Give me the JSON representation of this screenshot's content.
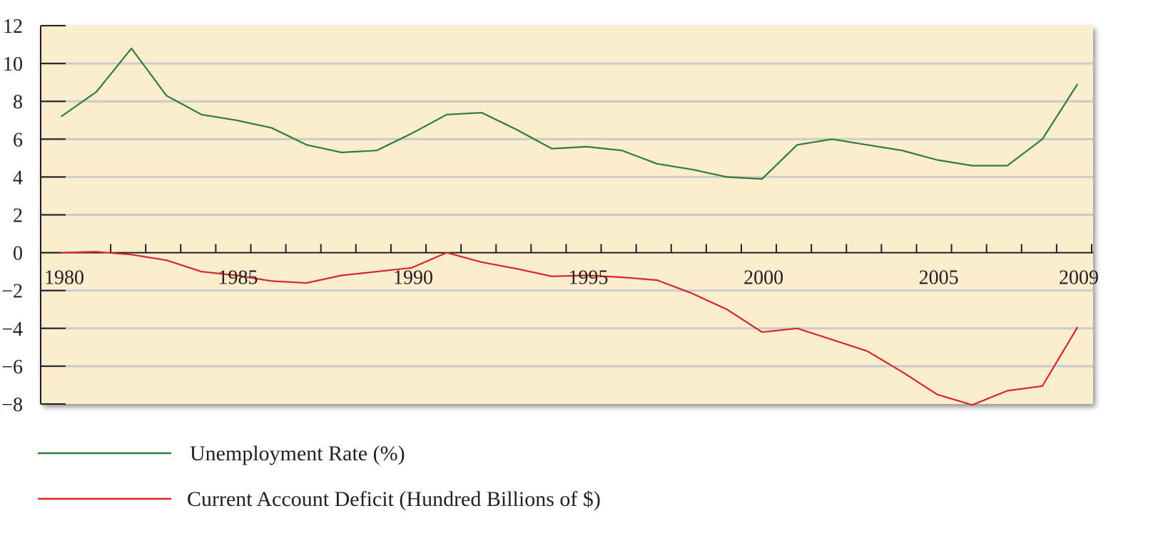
{
  "chart_data": {
    "type": "line",
    "x": [
      1980,
      1981,
      1982,
      1983,
      1984,
      1985,
      1986,
      1987,
      1988,
      1989,
      1990,
      1991,
      1992,
      1993,
      1994,
      1995,
      1996,
      1997,
      1998,
      1999,
      2000,
      2001,
      2002,
      2003,
      2004,
      2005,
      2006,
      2007,
      2008,
      2009
    ],
    "series": [
      {
        "name": "Unemployment Rate (%)",
        "color": "#2e7d32",
        "values": [
          7.2,
          8.5,
          10.8,
          8.3,
          7.3,
          7.0,
          6.6,
          5.7,
          5.3,
          5.4,
          6.3,
          7.3,
          7.4,
          6.5,
          5.5,
          5.6,
          5.4,
          4.7,
          4.4,
          4.0,
          3.9,
          5.7,
          6.0,
          5.7,
          5.4,
          4.9,
          4.6,
          4.6,
          6.0,
          8.9
        ]
      },
      {
        "name": "Current Account Deficit (Hundred Billions of $)",
        "color": "#d7262b",
        "values": [
          0.0,
          0.05,
          -0.1,
          -0.4,
          -1.0,
          -1.2,
          -1.5,
          -1.6,
          -1.2,
          -1.0,
          -0.8,
          0.0,
          -0.5,
          -0.85,
          -1.25,
          -1.2,
          -1.3,
          -1.45,
          -2.15,
          -3.0,
          -4.2,
          -4.0,
          -4.6,
          -5.2,
          -6.3,
          -7.5,
          -8.05,
          -7.3,
          -7.05,
          -3.95
        ]
      }
    ],
    "x_tick_labels": [
      "1980",
      "1985",
      "1990",
      "1995",
      "2000",
      "2005",
      "2009"
    ],
    "y_tick_labels": [
      "12",
      "10",
      "8",
      "6",
      "4",
      "2",
      "0",
      "−2",
      "−4",
      "−6",
      "−8"
    ],
    "ylim": [
      -8,
      12
    ],
    "xlim": [
      1980,
      2009
    ],
    "grid": true,
    "colors": {
      "plot_background": "#fdedcf",
      "gridline": "#c9cbcd",
      "axis": "#231f20"
    },
    "legend_position": "bottom-left"
  }
}
